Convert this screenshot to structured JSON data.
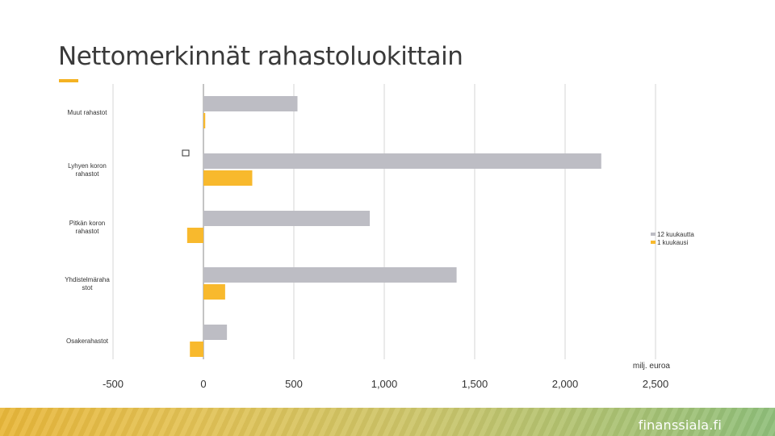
{
  "page": {
    "title": "Nettomerkinnät rahastoluokittain",
    "brand": "finanssiala.fi"
  },
  "colors": {
    "series_12m": "#bdbdc4",
    "series_1m": "#f8b92d",
    "accent": "#f4b223",
    "grid": "#d4d4d4",
    "zero_axis": "#8a8a8a"
  },
  "chart_data": {
    "type": "bar",
    "orientation": "horizontal",
    "categories": [
      "Muut rahastot",
      "Lyhyen koron rahastot",
      "Pitkän koron rahastot",
      "Yhdistelmäraha stot",
      "Osakerahastot"
    ],
    "series": [
      {
        "name": "12 kuukautta",
        "values": [
          520,
          2200,
          920,
          1400,
          130
        ]
      },
      {
        "name": "1 kuukausi",
        "values": [
          10,
          270,
          -90,
          120,
          -75
        ]
      }
    ],
    "xlim": [
      -500,
      2500
    ],
    "xticks": [
      "-500",
      "0",
      "500",
      "1,000",
      "1,500",
      "2,000",
      "2,500"
    ],
    "xlabel": "milj. euroa",
    "grid": "vertical",
    "legend_position": "right"
  }
}
